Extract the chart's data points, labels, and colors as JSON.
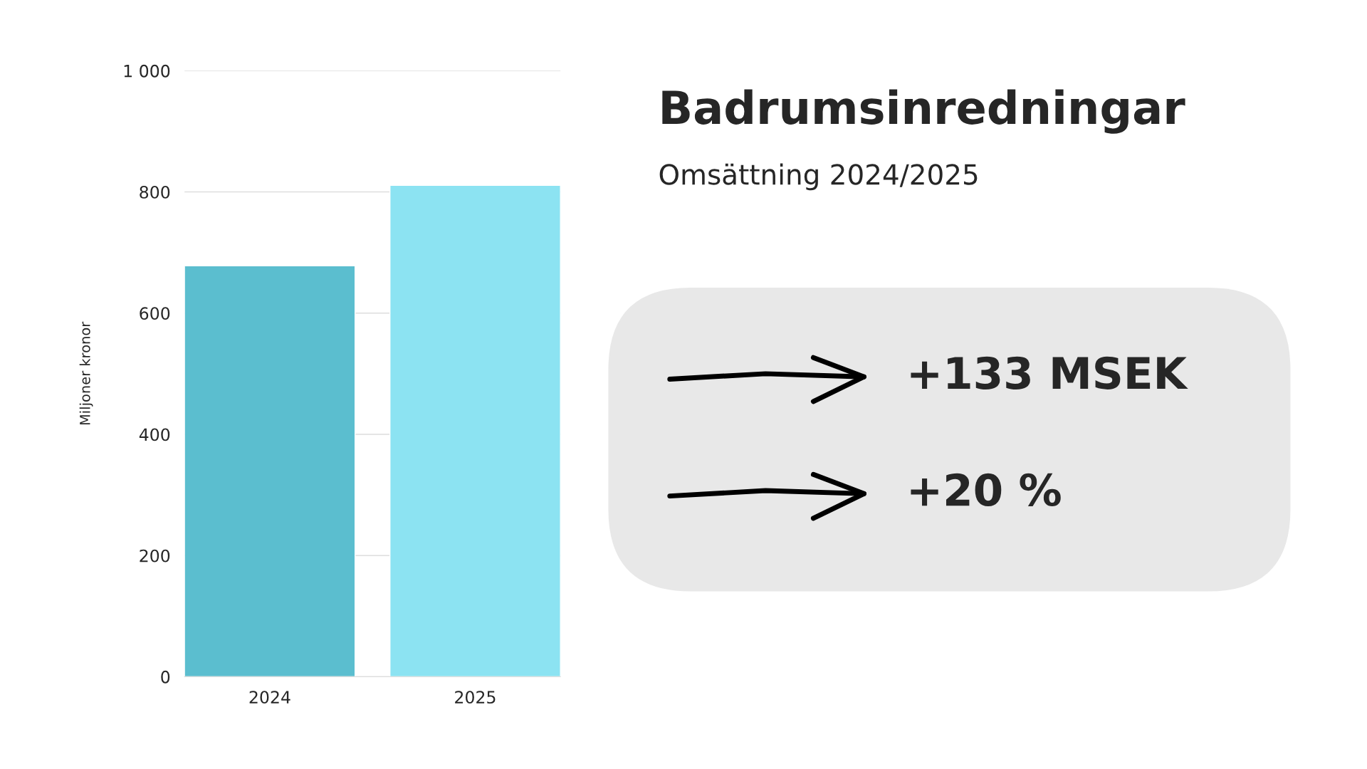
{
  "chart_data": {
    "type": "bar",
    "title": "Badrumsinredningar",
    "subtitle": "Omsättning 2024/2025",
    "ylabel": "Miljoner kronor",
    "categories": [
      "2024",
      "2025"
    ],
    "values": [
      678,
      811
    ],
    "colors": [
      "#5bbecf",
      "#8ce3f2"
    ],
    "ylim": [
      0,
      1000
    ],
    "yticks": [
      0,
      200,
      400,
      600,
      800,
      {
        "value": 1000,
        "label": "1 000"
      }
    ],
    "grid": "y",
    "annotations": [
      "+133 MSEK",
      "+20 %"
    ]
  }
}
